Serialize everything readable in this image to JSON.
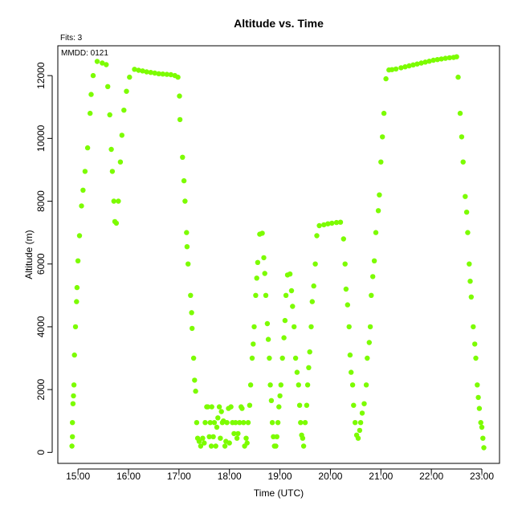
{
  "chart_data": {
    "type": "scatter",
    "title": "Altitude  vs. Time",
    "annotation_top": "Fits: 3",
    "annotation_inside": "MMDD: 0121",
    "xlabel": "Time (UTC)",
    "ylabel": "Altitude (m)",
    "x_unit": "hours UTC",
    "xlim": [
      14.6,
      23.35
    ],
    "ylim": [
      -350,
      12950
    ],
    "x_ticks": [
      15,
      16,
      17,
      18,
      19,
      20,
      21,
      22,
      23
    ],
    "x_tick_labels": [
      "15:00",
      "16:00",
      "17:00",
      "18:00",
      "19:00",
      "20:00",
      "21:00",
      "22:00",
      "23:00"
    ],
    "y_ticks": [
      0,
      2000,
      4000,
      6000,
      8000,
      10000,
      12000
    ],
    "y_tick_labels": [
      "0",
      "2000",
      "4000",
      "6000",
      "8000",
      "10000",
      "12000"
    ],
    "grid": false,
    "point_color": "#7cfc00",
    "points": [
      [
        14.88,
        200
      ],
      [
        14.89,
        500
      ],
      [
        14.89,
        950
      ],
      [
        14.9,
        1550
      ],
      [
        14.91,
        1800
      ],
      [
        14.92,
        2150
      ],
      [
        14.93,
        3100
      ],
      [
        14.95,
        4000
      ],
      [
        14.97,
        4800
      ],
      [
        14.98,
        5250
      ],
      [
        15.0,
        6100
      ],
      [
        15.03,
        6900
      ],
      [
        15.07,
        7850
      ],
      [
        15.1,
        8350
      ],
      [
        15.14,
        8950
      ],
      [
        15.19,
        9700
      ],
      [
        15.24,
        10800
      ],
      [
        15.26,
        11400
      ],
      [
        15.3,
        12000
      ],
      [
        15.38,
        12450
      ],
      [
        15.48,
        12400
      ],
      [
        15.56,
        12350
      ],
      [
        15.59,
        11650
      ],
      [
        15.63,
        10750
      ],
      [
        15.66,
        9650
      ],
      [
        15.68,
        8950
      ],
      [
        15.71,
        8000
      ],
      [
        15.73,
        7350
      ],
      [
        15.76,
        7300
      ],
      [
        15.8,
        8000
      ],
      [
        15.84,
        9250
      ],
      [
        15.87,
        10100
      ],
      [
        15.91,
        10900
      ],
      [
        15.96,
        11500
      ],
      [
        16.02,
        11950
      ],
      [
        16.12,
        12200
      ],
      [
        16.2,
        12170
      ],
      [
        16.28,
        12150
      ],
      [
        16.36,
        12120
      ],
      [
        16.44,
        12100
      ],
      [
        16.52,
        12080
      ],
      [
        16.6,
        12060
      ],
      [
        16.68,
        12050
      ],
      [
        16.76,
        12040
      ],
      [
        16.84,
        12030
      ],
      [
        16.92,
        12000
      ],
      [
        16.98,
        11950
      ],
      [
        17.01,
        11350
      ],
      [
        17.02,
        10600
      ],
      [
        17.07,
        9400
      ],
      [
        17.1,
        8650
      ],
      [
        17.12,
        8000
      ],
      [
        17.15,
        7000
      ],
      [
        17.16,
        6550
      ],
      [
        17.18,
        6000
      ],
      [
        17.23,
        5000
      ],
      [
        17.25,
        4450
      ],
      [
        17.26,
        3950
      ],
      [
        17.29,
        3000
      ],
      [
        17.31,
        2300
      ],
      [
        17.33,
        1950
      ],
      [
        17.35,
        950
      ],
      [
        17.37,
        450
      ],
      [
        17.4,
        350
      ],
      [
        17.43,
        200
      ],
      [
        17.47,
        450
      ],
      [
        17.5,
        300
      ],
      [
        17.52,
        950
      ],
      [
        17.55,
        1450
      ],
      [
        17.57,
        1450
      ],
      [
        17.6,
        500
      ],
      [
        17.62,
        950
      ],
      [
        17.64,
        200
      ],
      [
        17.65,
        1450
      ],
      [
        17.68,
        500
      ],
      [
        17.7,
        950
      ],
      [
        17.73,
        200
      ],
      [
        17.75,
        800
      ],
      [
        17.77,
        1100
      ],
      [
        17.8,
        1450
      ],
      [
        17.82,
        450
      ],
      [
        17.84,
        1300
      ],
      [
        17.86,
        950
      ],
      [
        17.88,
        1000
      ],
      [
        17.91,
        200
      ],
      [
        17.93,
        350
      ],
      [
        17.95,
        950
      ],
      [
        17.98,
        1400
      ],
      [
        18.0,
        300
      ],
      [
        18.03,
        1450
      ],
      [
        18.06,
        950
      ],
      [
        18.09,
        600
      ],
      [
        18.12,
        950
      ],
      [
        18.15,
        450
      ],
      [
        18.17,
        600
      ],
      [
        18.2,
        950
      ],
      [
        18.23,
        1450
      ],
      [
        18.25,
        1400
      ],
      [
        18.28,
        950
      ],
      [
        18.3,
        200
      ],
      [
        18.33,
        450
      ],
      [
        18.35,
        300
      ],
      [
        18.37,
        950
      ],
      [
        18.4,
        1500
      ],
      [
        18.42,
        2150
      ],
      [
        18.45,
        3000
      ],
      [
        18.47,
        3450
      ],
      [
        18.49,
        4000
      ],
      [
        18.52,
        5000
      ],
      [
        18.54,
        5550
      ],
      [
        18.56,
        6050
      ],
      [
        18.6,
        6950
      ],
      [
        18.65,
        6980
      ],
      [
        18.68,
        6200
      ],
      [
        18.7,
        5700
      ],
      [
        18.72,
        5000
      ],
      [
        18.75,
        4100
      ],
      [
        18.77,
        3600
      ],
      [
        18.79,
        3000
      ],
      [
        18.81,
        2150
      ],
      [
        18.83,
        1650
      ],
      [
        18.85,
        950
      ],
      [
        18.87,
        500
      ],
      [
        18.89,
        200
      ],
      [
        18.92,
        200
      ],
      [
        18.94,
        500
      ],
      [
        18.96,
        950
      ],
      [
        18.98,
        1450
      ],
      [
        19.0,
        1800
      ],
      [
        19.02,
        2150
      ],
      [
        19.05,
        3000
      ],
      [
        19.08,
        3650
      ],
      [
        19.1,
        4200
      ],
      [
        19.12,
        5000
      ],
      [
        19.15,
        5650
      ],
      [
        19.2,
        5680
      ],
      [
        19.23,
        5150
      ],
      [
        19.25,
        4650
      ],
      [
        19.28,
        4000
      ],
      [
        19.31,
        3000
      ],
      [
        19.34,
        2550
      ],
      [
        19.37,
        2150
      ],
      [
        19.39,
        1500
      ],
      [
        19.41,
        950
      ],
      [
        19.43,
        550
      ],
      [
        19.45,
        450
      ],
      [
        19.47,
        200
      ],
      [
        19.5,
        950
      ],
      [
        19.53,
        1500
      ],
      [
        19.55,
        2150
      ],
      [
        19.57,
        2700
      ],
      [
        19.59,
        3200
      ],
      [
        19.62,
        4000
      ],
      [
        19.64,
        4800
      ],
      [
        19.67,
        5300
      ],
      [
        19.7,
        6000
      ],
      [
        19.73,
        6900
      ],
      [
        19.78,
        7220
      ],
      [
        19.87,
        7250
      ],
      [
        19.95,
        7280
      ],
      [
        20.03,
        7300
      ],
      [
        20.12,
        7320
      ],
      [
        20.2,
        7330
      ],
      [
        20.26,
        6800
      ],
      [
        20.29,
        6000
      ],
      [
        20.31,
        5200
      ],
      [
        20.34,
        4700
      ],
      [
        20.37,
        4000
      ],
      [
        20.39,
        3100
      ],
      [
        20.41,
        2550
      ],
      [
        20.44,
        2150
      ],
      [
        20.46,
        1500
      ],
      [
        20.49,
        950
      ],
      [
        20.52,
        550
      ],
      [
        20.55,
        450
      ],
      [
        20.58,
        700
      ],
      [
        20.6,
        950
      ],
      [
        20.63,
        1250
      ],
      [
        20.67,
        1550
      ],
      [
        20.71,
        2150
      ],
      [
        20.73,
        3000
      ],
      [
        20.77,
        3500
      ],
      [
        20.79,
        4000
      ],
      [
        20.81,
        5000
      ],
      [
        20.84,
        5600
      ],
      [
        20.87,
        6100
      ],
      [
        20.9,
        7000
      ],
      [
        20.95,
        7700
      ],
      [
        20.97,
        8200
      ],
      [
        21.0,
        9250
      ],
      [
        21.03,
        10050
      ],
      [
        21.06,
        10800
      ],
      [
        21.1,
        11900
      ],
      [
        21.16,
        12180
      ],
      [
        21.22,
        12190
      ],
      [
        21.3,
        12210
      ],
      [
        21.4,
        12250
      ],
      [
        21.48,
        12280
      ],
      [
        21.56,
        12310
      ],
      [
        21.64,
        12340
      ],
      [
        21.72,
        12370
      ],
      [
        21.8,
        12400
      ],
      [
        21.88,
        12430
      ],
      [
        21.96,
        12460
      ],
      [
        22.04,
        12490
      ],
      [
        22.12,
        12510
      ],
      [
        22.2,
        12530
      ],
      [
        22.28,
        12550
      ],
      [
        22.36,
        12570
      ],
      [
        22.44,
        12580
      ],
      [
        22.5,
        12600
      ],
      [
        22.53,
        11950
      ],
      [
        22.57,
        10800
      ],
      [
        22.6,
        10050
      ],
      [
        22.63,
        9250
      ],
      [
        22.67,
        8150
      ],
      [
        22.7,
        7650
      ],
      [
        22.72,
        7000
      ],
      [
        22.75,
        6000
      ],
      [
        22.77,
        5450
      ],
      [
        22.79,
        4950
      ],
      [
        22.83,
        4000
      ],
      [
        22.86,
        3450
      ],
      [
        22.88,
        3000
      ],
      [
        22.91,
        2150
      ],
      [
        22.93,
        1750
      ],
      [
        22.95,
        1400
      ],
      [
        22.98,
        950
      ],
      [
        23.0,
        800
      ],
      [
        23.02,
        450
      ],
      [
        23.04,
        150
      ]
    ]
  }
}
